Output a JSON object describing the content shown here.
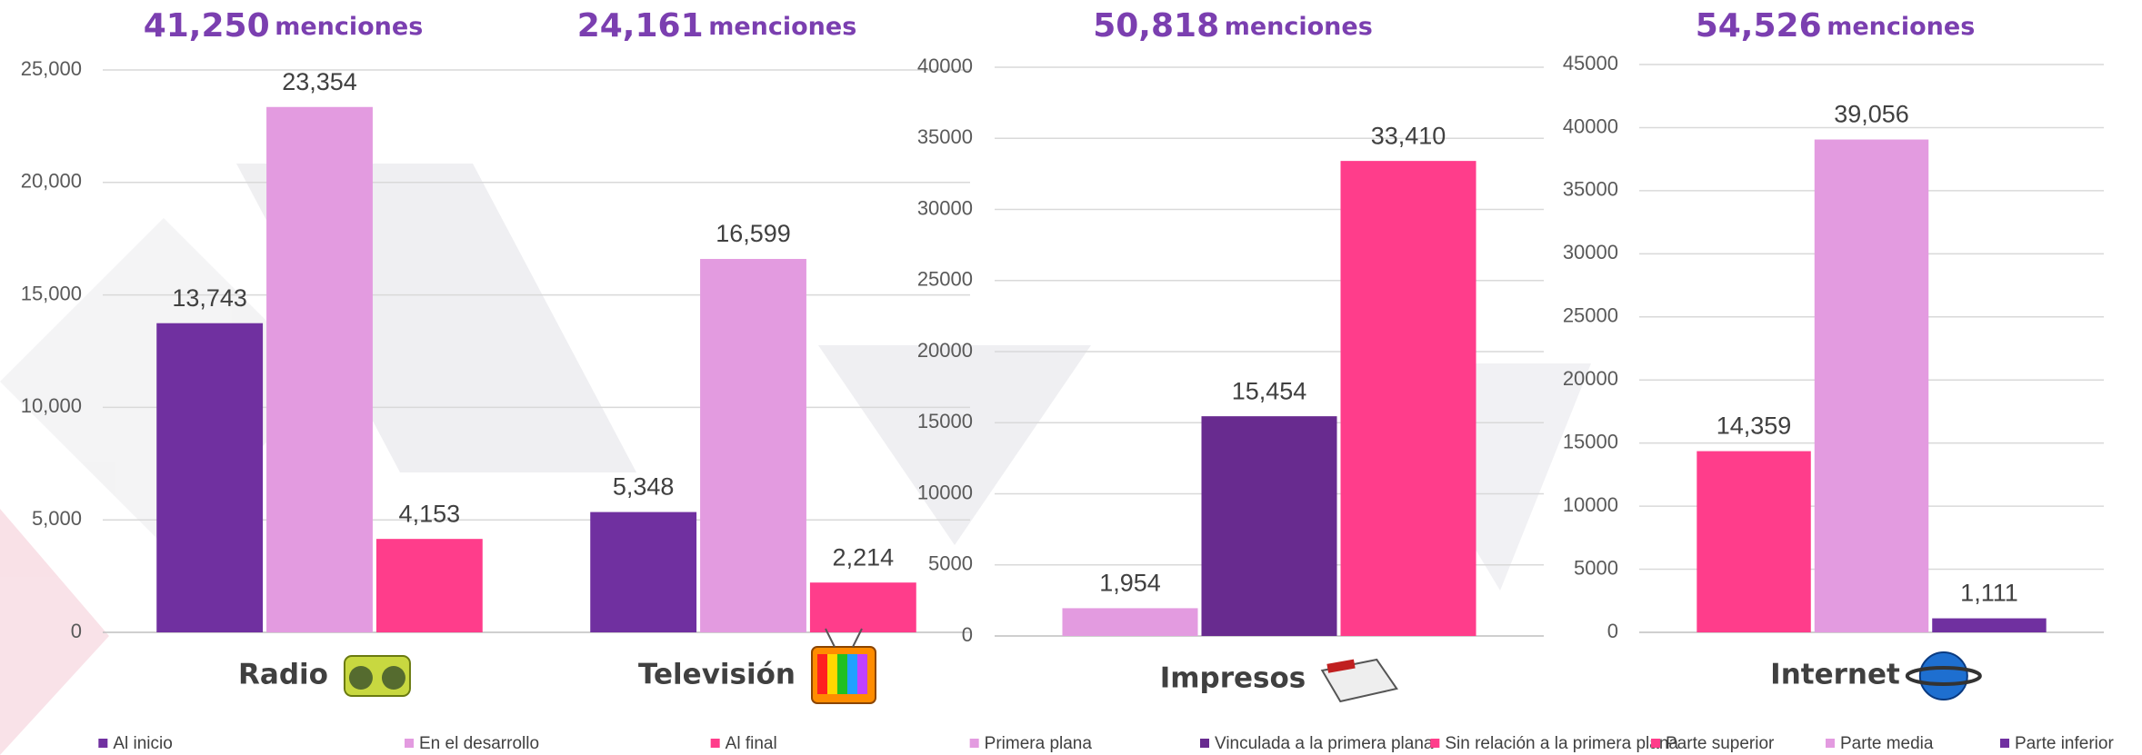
{
  "chart_data": [
    {
      "type": "bar",
      "categories": [
        "Radio",
        "Televisión"
      ],
      "headers": [
        {
          "total": "41,250",
          "unit": "menciones"
        },
        {
          "total": "24,161",
          "unit": "menciones"
        }
      ],
      "series": [
        {
          "name": "Al inicio",
          "color": "#7030a0",
          "values": [
            13743,
            5348
          ],
          "value_labels": [
            "13,743",
            "5,348"
          ]
        },
        {
          "name": "En el desarrollo",
          "color": "#e39be0",
          "values": [
            23354,
            16599
          ],
          "value_labels": [
            "23,354",
            "16,599"
          ]
        },
        {
          "name": "Al final",
          "color": "#ff3d8b",
          "values": [
            4153,
            2214
          ],
          "value_labels": [
            "4,153",
            "2,214"
          ]
        }
      ],
      "ylim": [
        0,
        25000
      ],
      "yticks": [
        0,
        {
          "value": 5000,
          "label": "5,000"
        },
        {
          "value": 10000,
          "label": "10,000"
        },
        {
          "value": 15000,
          "label": "15,000"
        },
        {
          "value": 20000,
          "label": "20,000"
        },
        {
          "value": 25000,
          "label": "25,000"
        }
      ],
      "grid": true
    },
    {
      "type": "bar",
      "categories": [
        "Impresos"
      ],
      "headers": [
        {
          "total": "50,818",
          "unit": "menciones"
        }
      ],
      "series": [
        {
          "name": "Primera plana",
          "color": "#e39be0",
          "values": [
            1954
          ],
          "value_labels": [
            "1,954"
          ]
        },
        {
          "name": "Vinculada a la primera plana",
          "color": "#682b8f",
          "values": [
            15454
          ],
          "value_labels": [
            "15,454"
          ]
        },
        {
          "name": "Sin relación a la primera plana",
          "color": "#ff3d8b",
          "values": [
            33410
          ],
          "value_labels": [
            "33,410"
          ]
        }
      ],
      "ylim": [
        0,
        40000
      ],
      "yticks": [
        0,
        5000,
        10000,
        15000,
        20000,
        25000,
        30000,
        35000,
        40000
      ],
      "grid": true
    },
    {
      "type": "bar",
      "categories": [
        "Internet"
      ],
      "headers": [
        {
          "total": "54,526",
          "unit": "menciones"
        }
      ],
      "series": [
        {
          "name": "Parte superior",
          "color": "#ff3d8b",
          "values": [
            14359
          ],
          "value_labels": [
            "14,359"
          ]
        },
        {
          "name": "Parte media",
          "color": "#e39be0",
          "values": [
            39056
          ],
          "value_labels": [
            "39,056"
          ]
        },
        {
          "name": "Parte inferior",
          "color": "#7030a0",
          "values": [
            1111
          ],
          "value_labels": [
            "1,111"
          ]
        }
      ],
      "ylim": [
        0,
        45000
      ],
      "yticks": [
        0,
        5000,
        10000,
        15000,
        20000,
        25000,
        30000,
        35000,
        40000,
        45000
      ],
      "grid": true
    }
  ]
}
